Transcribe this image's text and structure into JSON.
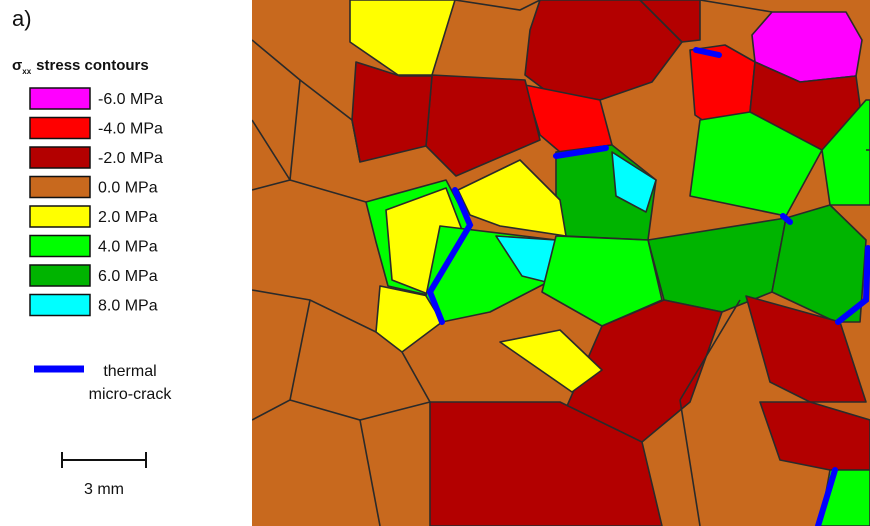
{
  "panel_label": "a)",
  "legend": {
    "title": {
      "symbol": "σ",
      "subscript": "xx",
      "text": "stress contours"
    },
    "items": [
      {
        "label": "-6.0 MPa",
        "color": "#ff00ff"
      },
      {
        "label": "-4.0 MPa",
        "color": "#ff0000"
      },
      {
        "label": "-2.0 MPa",
        "color": "#b30000"
      },
      {
        "label": "0.0 MPa",
        "color": "#c8691e"
      },
      {
        "label": "2.0 MPa",
        "color": "#ffff00"
      },
      {
        "label": "4.0 MPa",
        "color": "#00ff00"
      },
      {
        "label": "6.0 MPa",
        "color": "#00b400"
      },
      {
        "label": "8.0 MPa",
        "color": "#00ffff"
      }
    ]
  },
  "crack_legend": {
    "lines": [
      "thermal",
      "micro-crack"
    ],
    "color": "#0000ff"
  },
  "scale_bar": {
    "label": "3 mm"
  }
}
